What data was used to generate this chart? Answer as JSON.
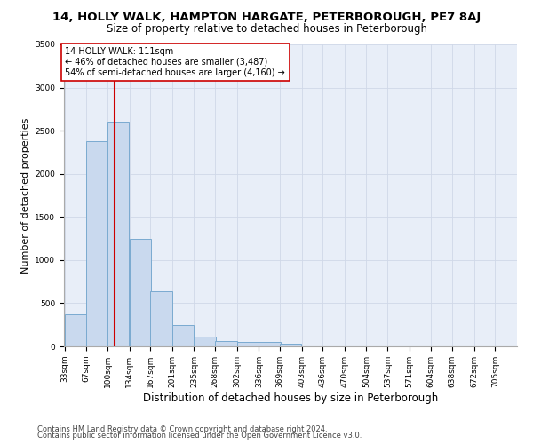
{
  "title": "14, HOLLY WALK, HAMPTON HARGATE, PETERBOROUGH, PE7 8AJ",
  "subtitle": "Size of property relative to detached houses in Peterborough",
  "xlabel": "Distribution of detached houses by size in Peterborough",
  "ylabel": "Number of detached properties",
  "bins": [
    33,
    67,
    100,
    134,
    167,
    201,
    235,
    268,
    302,
    336,
    369,
    403,
    436,
    470,
    504,
    537,
    571,
    604,
    638,
    672,
    705
  ],
  "counts": [
    375,
    2380,
    2600,
    1250,
    640,
    245,
    110,
    60,
    55,
    50,
    30,
    0,
    0,
    0,
    0,
    0,
    0,
    0,
    0,
    0
  ],
  "bar_color": "#c9d9ee",
  "bar_edge_color": "#7aaad0",
  "vline_x": 111,
  "vline_color": "#cc0000",
  "annotation_text": "14 HOLLY WALK: 111sqm\n← 46% of detached houses are smaller (3,487)\n54% of semi-detached houses are larger (4,160) →",
  "annotation_box_color": "#ffffff",
  "annotation_box_edge": "#cc0000",
  "ylim": [
    0,
    3500
  ],
  "yticks": [
    0,
    500,
    1000,
    1500,
    2000,
    2500,
    3000,
    3500
  ],
  "bg_color": "#e8eef8",
  "footnote1": "Contains HM Land Registry data © Crown copyright and database right 2024.",
  "footnote2": "Contains public sector information licensed under the Open Government Licence v3.0.",
  "title_fontsize": 9.5,
  "subtitle_fontsize": 8.5,
  "tick_fontsize": 6.5,
  "ylabel_fontsize": 8,
  "xlabel_fontsize": 8.5,
  "footnote_fontsize": 6,
  "annotation_fontsize": 7
}
